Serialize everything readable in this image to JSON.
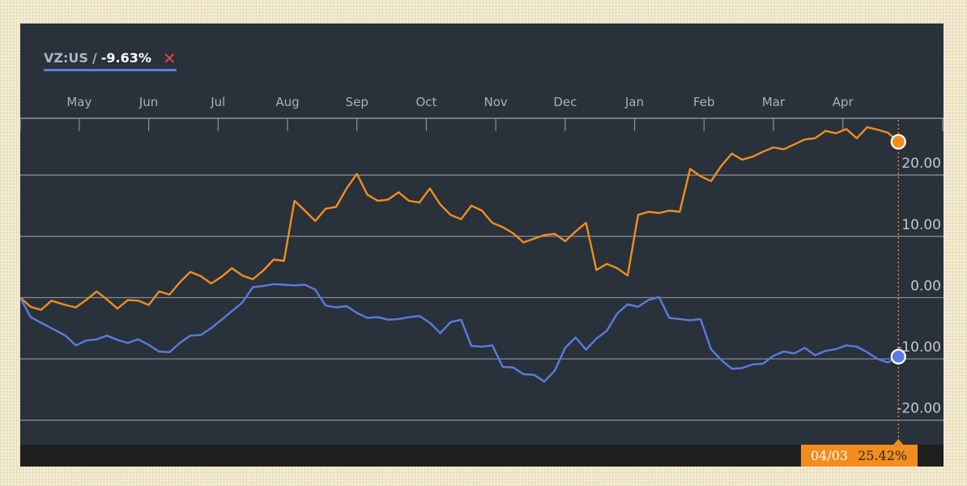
{
  "legend": {
    "ticker": "VZ:US",
    "separator": "/",
    "change": "-9.63%",
    "remove_icon": "close-icon",
    "color": "#5b7be0"
  },
  "tooltip": {
    "date": "04/03",
    "value": "25.42%",
    "background": "#f28d1e"
  },
  "colors": {
    "background": "#29313b",
    "vz_series": "#5b7be0",
    "comparison_series": "#f28d1e",
    "gridline": "#8c929b"
  },
  "chart_data": {
    "type": "line",
    "title": "",
    "x_month_labels": [
      "May",
      "Jun",
      "Jul",
      "Aug",
      "Sep",
      "Oct",
      "Nov",
      "Dec",
      "Jan",
      "Feb",
      "Mar",
      "Apr"
    ],
    "y_tick_labels": [
      "20.00",
      "10.00",
      "0.00",
      "-10.00",
      "-20.00"
    ],
    "yticks": [
      20,
      10,
      0,
      -10,
      -20
    ],
    "ylim": [
      -24,
      29
    ],
    "y_axis_side": "right",
    "grid": "horizontal",
    "x_unit": "months since start of the axis",
    "xlim": [
      -0.85,
      12.45
    ],
    "crosshair_x": 11.8,
    "series": [
      {
        "name": "VZ:US",
        "color": "#5b7be0",
        "x": [
          -0.85,
          -0.7,
          -0.55,
          -0.4,
          -0.2,
          -0.05,
          0.1,
          0.25,
          0.4,
          0.55,
          0.7,
          0.85,
          1.0,
          1.15,
          1.3,
          1.45,
          1.6,
          1.75,
          1.9,
          2.05,
          2.2,
          2.35,
          2.5,
          2.65,
          2.8,
          2.95,
          3.1,
          3.25,
          3.4,
          3.55,
          3.7,
          3.85,
          4.0,
          4.15,
          4.3,
          4.45,
          4.6,
          4.75,
          4.9,
          5.05,
          5.2,
          5.35,
          5.5,
          5.65,
          5.8,
          5.95,
          6.1,
          6.25,
          6.4,
          6.55,
          6.7,
          6.85,
          7.0,
          7.15,
          7.3,
          7.45,
          7.6,
          7.75,
          7.9,
          8.05,
          8.2,
          8.35,
          8.5,
          8.65,
          8.8,
          8.95,
          9.1,
          9.25,
          9.4,
          9.55,
          9.7,
          9.85,
          10.0,
          10.15,
          10.3,
          10.45,
          10.6,
          10.75,
          10.9,
          11.05,
          11.2,
          11.35,
          11.5,
          11.65,
          11.8
        ],
        "values": [
          0,
          -3.2,
          -4.1,
          -5.0,
          -6.2,
          -7.8,
          -7.0,
          -6.8,
          -6.2,
          -6.9,
          -7.4,
          -6.8,
          -7.7,
          -8.8,
          -8.9,
          -7.4,
          -6.2,
          -6.1,
          -5.0,
          -3.6,
          -2.2,
          -0.8,
          1.7,
          1.9,
          2.2,
          2.1,
          2.0,
          2.1,
          1.3,
          -1.3,
          -1.6,
          -1.4,
          -2.5,
          -3.3,
          -3.2,
          -3.6,
          -3.5,
          -3.2,
          -3.0,
          -4.1,
          -5.8,
          -4.0,
          -3.6,
          -7.9,
          -8.0,
          -7.8,
          -11.3,
          -11.4,
          -12.5,
          -12.6,
          -13.7,
          -11.9,
          -8.2,
          -6.5,
          -8.5,
          -6.7,
          -5.4,
          -2.6,
          -1.1,
          -1.5,
          -0.4,
          0.1,
          -3.3,
          -3.5,
          -3.7,
          -3.5,
          -8.4,
          -10.2,
          -11.6,
          -11.5,
          -10.9,
          -10.8,
          -9.5,
          -8.8,
          -9.1,
          -8.2,
          -9.4,
          -8.7,
          -8.4,
          -7.8,
          -8.0,
          -8.9,
          -10.0,
          -10.6,
          -9.63
        ]
      },
      {
        "name": "",
        "color": "#f28d1e",
        "x": [
          -0.85,
          -0.7,
          -0.55,
          -0.4,
          -0.2,
          -0.05,
          0.1,
          0.25,
          0.4,
          0.55,
          0.7,
          0.85,
          1.0,
          1.15,
          1.3,
          1.45,
          1.6,
          1.75,
          1.9,
          2.05,
          2.2,
          2.35,
          2.5,
          2.65,
          2.8,
          2.95,
          3.1,
          3.25,
          3.4,
          3.55,
          3.7,
          3.85,
          4.0,
          4.15,
          4.3,
          4.45,
          4.6,
          4.75,
          4.9,
          5.05,
          5.2,
          5.35,
          5.5,
          5.65,
          5.8,
          5.95,
          6.1,
          6.25,
          6.4,
          6.55,
          6.7,
          6.85,
          7.0,
          7.15,
          7.3,
          7.45,
          7.6,
          7.75,
          7.9,
          8.05,
          8.2,
          8.35,
          8.5,
          8.65,
          8.8,
          8.95,
          9.1,
          9.25,
          9.4,
          9.55,
          9.7,
          9.85,
          10.0,
          10.15,
          10.3,
          10.45,
          10.6,
          10.75,
          10.9,
          11.05,
          11.2,
          11.35,
          11.5,
          11.65,
          11.8
        ],
        "values": [
          0,
          -1.5,
          -2.0,
          -0.5,
          -1.2,
          -1.6,
          -0.4,
          1.0,
          -0.3,
          -1.8,
          -0.4,
          -0.5,
          -1.2,
          1.0,
          0.5,
          2.5,
          4.2,
          3.5,
          2.3,
          3.4,
          4.8,
          3.6,
          3.0,
          4.4,
          6.2,
          6.0,
          15.8,
          14.2,
          12.5,
          14.5,
          14.8,
          17.8,
          20.2,
          16.8,
          15.8,
          16.0,
          17.2,
          15.8,
          15.5,
          17.8,
          15.2,
          13.5,
          12.8,
          15.0,
          14.2,
          12.2,
          11.5,
          10.5,
          9.0,
          9.6,
          10.2,
          10.4,
          9.2,
          10.8,
          12.2,
          4.5,
          5.5,
          4.8,
          3.6,
          13.5,
          14.0,
          13.8,
          14.2,
          14.0,
          21.0,
          19.8,
          19.0,
          21.5,
          23.5,
          22.5,
          23.0,
          23.8,
          24.5,
          24.2,
          25.0,
          25.8,
          26.0,
          27.2,
          26.8,
          27.5,
          26.0,
          27.8,
          27.4,
          26.9,
          25.42
        ]
      }
    ]
  }
}
